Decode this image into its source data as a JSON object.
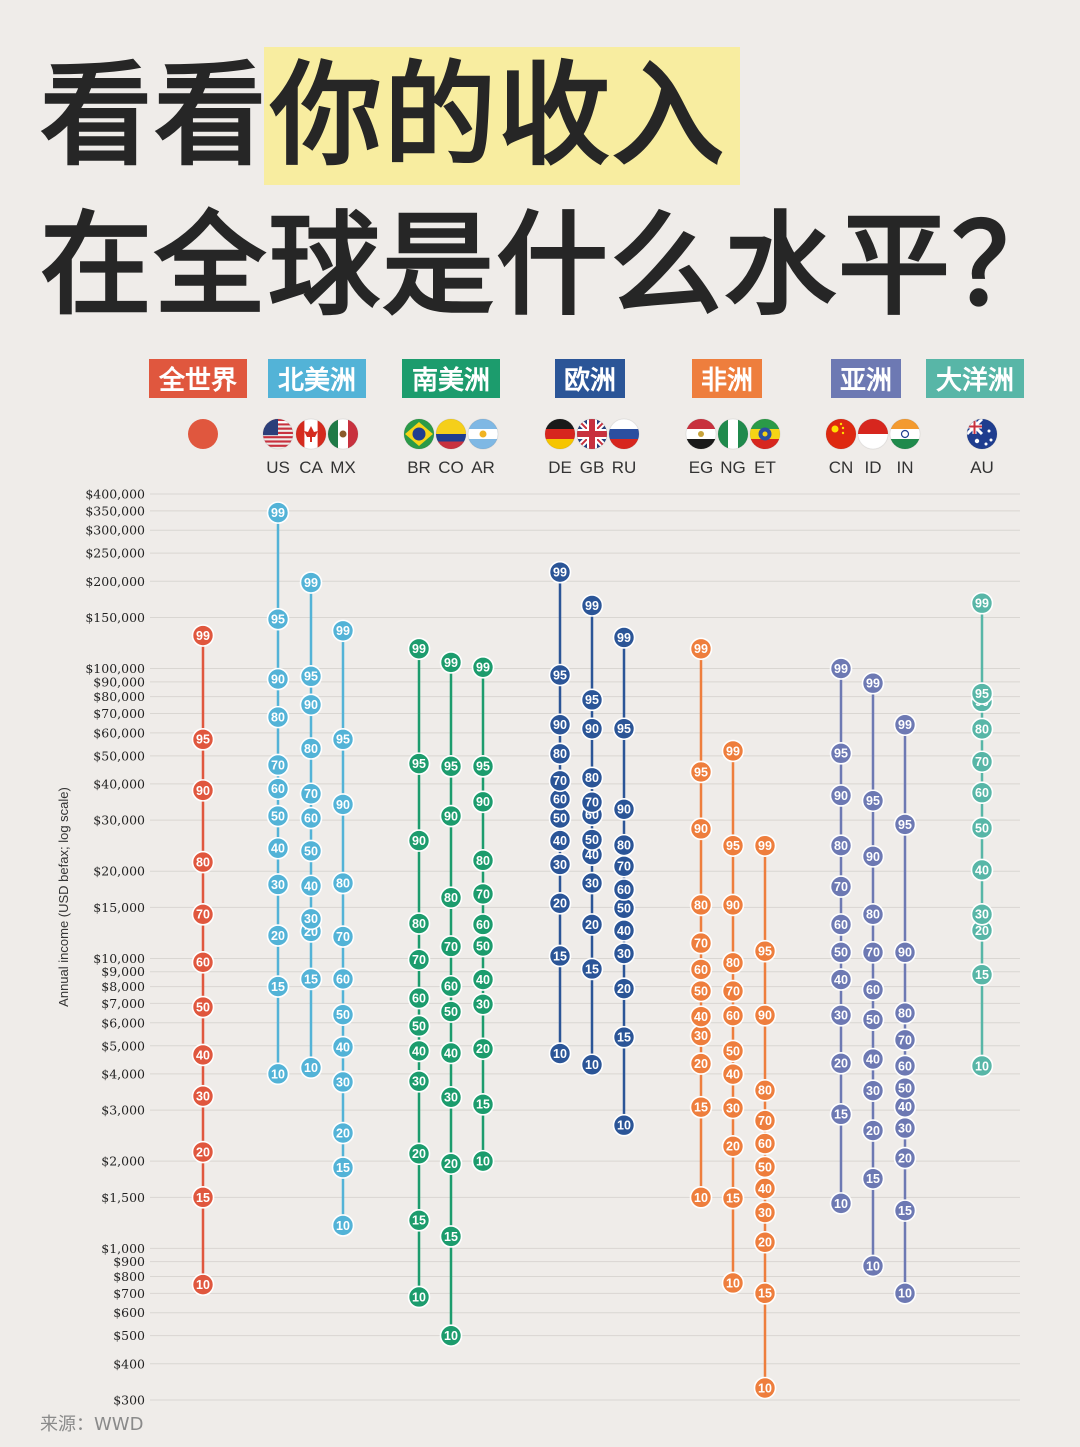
{
  "title": {
    "line1_plain": "看看",
    "line1_highlight": "你的收入",
    "line2": "在全球是什么水平？"
  },
  "source": "来源：WWD",
  "colors": {
    "world": "#e0573e",
    "north_america": "#53b3d7",
    "south_america": "#1c9c6d",
    "europe": "#2b5597",
    "africa": "#ee7e3d",
    "asia": "#6d79b3",
    "oceania": "#58b6a7"
  },
  "chart_data": {
    "type": "scatter",
    "ylabel": "Annual income (USD befax; log scale)",
    "yscale": "log",
    "ylim": [
      300,
      400000
    ],
    "grid": true,
    "yticks": [
      {
        "value": 300,
        "label": "$300"
      },
      {
        "value": 400,
        "label": "$400"
      },
      {
        "value": 500,
        "label": "$500"
      },
      {
        "value": 600,
        "label": "$600"
      },
      {
        "value": 700,
        "label": "$700"
      },
      {
        "value": 800,
        "label": "$800"
      },
      {
        "value": 900,
        "label": "$900"
      },
      {
        "value": 1000,
        "label": "$1,000"
      },
      {
        "value": 1500,
        "label": "$1,500"
      },
      {
        "value": 2000,
        "label": "$2,000"
      },
      {
        "value": 3000,
        "label": "$3,000"
      },
      {
        "value": 4000,
        "label": "$4,000"
      },
      {
        "value": 5000,
        "label": "$5,000"
      },
      {
        "value": 6000,
        "label": "$6,000"
      },
      {
        "value": 7000,
        "label": "$7,000"
      },
      {
        "value": 8000,
        "label": "$8,000"
      },
      {
        "value": 9000,
        "label": "$9,000"
      },
      {
        "value": 10000,
        "label": "$10,000"
      },
      {
        "value": 15000,
        "label": "$15,000"
      },
      {
        "value": 20000,
        "label": "$20,000"
      },
      {
        "value": 30000,
        "label": "$30,000"
      },
      {
        "value": 40000,
        "label": "$40,000"
      },
      {
        "value": 50000,
        "label": "$50,000"
      },
      {
        "value": 60000,
        "label": "$60,000"
      },
      {
        "value": 70000,
        "label": "$70,000"
      },
      {
        "value": 80000,
        "label": "$80,000"
      },
      {
        "value": 90000,
        "label": "$90,000"
      },
      {
        "value": 100000,
        "label": "$100,000"
      },
      {
        "value": 150000,
        "label": "$150,000"
      },
      {
        "value": 200000,
        "label": "$200,000"
      },
      {
        "value": 250000,
        "label": "$250,000"
      },
      {
        "value": 300000,
        "label": "$300,000"
      },
      {
        "value": 350000,
        "label": "$350,000"
      },
      {
        "value": 400000,
        "label": "$400,000"
      }
    ],
    "regions": [
      {
        "name": "全世界",
        "color": "#e0573e",
        "countries": [
          {
            "code": "",
            "flag": "world",
            "percentiles": {
              "10": 750,
              "15": 1500,
              "20": 2150,
              "30": 3350,
              "40": 4650,
              "50": 6800,
              "60": 9700,
              "70": 14200,
              "80": 21500,
              "90": 38000,
              "95": 57000,
              "99": 130000
            }
          }
        ]
      },
      {
        "name": "北美洲",
        "color": "#53b3d7",
        "countries": [
          {
            "code": "US",
            "flag": "us",
            "percentiles": {
              "10": 4000,
              "15": 8000,
              "20": 12000,
              "30": 18000,
              "40": 24000,
              "50": 31000,
              "60": 38500,
              "70": 46500,
              "80": 68000,
              "90": 92000,
              "95": 148000,
              "99": 345000
            }
          },
          {
            "code": "CA",
            "flag": "ca",
            "percentiles": {
              "10": 4200,
              "15": 8500,
              "20": 12400,
              "30": 13700,
              "40": 17800,
              "50": 23500,
              "60": 30500,
              "70": 37000,
              "80": 53000,
              "90": 75000,
              "95": 94000,
              "99": 198000
            }
          },
          {
            "code": "MX",
            "flag": "mx",
            "percentiles": {
              "10": 1200,
              "15": 1900,
              "20": 2500,
              "30": 3750,
              "40": 4950,
              "50": 6400,
              "60": 8500,
              "70": 11900,
              "80": 18200,
              "90": 34000,
              "95": 57000,
              "99": 135000
            }
          }
        ]
      },
      {
        "name": "南美洲",
        "color": "#1c9c6d",
        "countries": [
          {
            "code": "BR",
            "flag": "br",
            "percentiles": {
              "10": 680,
              "15": 1250,
              "20": 2120,
              "30": 3770,
              "40": 4800,
              "50": 5850,
              "60": 7300,
              "70": 9900,
              "80": 13200,
              "90": 25500,
              "95": 47000,
              "99": 117000
            }
          },
          {
            "code": "CO",
            "flag": "co",
            "percentiles": {
              "10": 500,
              "15": 1100,
              "20": 1960,
              "30": 3320,
              "40": 4720,
              "50": 6560,
              "60": 8020,
              "70": 11000,
              "80": 16200,
              "90": 31000,
              "95": 46000,
              "99": 105000
            }
          },
          {
            "code": "AR",
            "flag": "ar",
            "percentiles": {
              "10": 2000,
              "15": 3140,
              "20": 4880,
              "30": 6950,
              "40": 8460,
              "50": 11040,
              "60": 13100,
              "70": 16700,
              "80": 21800,
              "90": 34700,
              "95": 46000,
              "99": 101000
            }
          }
        ]
      },
      {
        "name": "欧洲",
        "color": "#2b5597",
        "countries": [
          {
            "code": "DE",
            "flag": "de",
            "percentiles": {
              "10": 4700,
              "15": 10200,
              "20": 15500,
              "30": 21100,
              "40": 25500,
              "50": 30500,
              "60": 35500,
              "70": 41000,
              "80": 50800,
              "90": 64000,
              "95": 95000,
              "99": 215000
            }
          },
          {
            "code": "GB",
            "flag": "gb",
            "percentiles": {
              "10": 4300,
              "15": 9200,
              "20": 13100,
              "30": 18200,
              "40": 22800,
              "50": 25700,
              "60": 31300,
              "70": 34600,
              "80": 42000,
              "90": 62000,
              "95": 78000,
              "99": 165000
            }
          },
          {
            "code": "RU",
            "flag": "ru",
            "percentiles": {
              "10": 2660,
              "15": 5350,
              "20": 7870,
              "30": 10400,
              "40": 12500,
              "50": 14900,
              "60": 17300,
              "70": 20800,
              "80": 24600,
              "90": 32700,
              "95": 62000,
              "99": 128000
            }
          }
        ]
      },
      {
        "name": "非洲",
        "color": "#ee7e3d",
        "countries": [
          {
            "code": "EG",
            "flag": "eg",
            "percentiles": {
              "10": 1500,
              "15": 3070,
              "20": 4340,
              "30": 5420,
              "40": 6300,
              "50": 7720,
              "60": 9170,
              "70": 11300,
              "80": 15300,
              "90": 28000,
              "95": 44000,
              "99": 117000
            }
          },
          {
            "code": "NG",
            "flag": "ng",
            "percentiles": {
              "10": 760,
              "15": 1490,
              "20": 2250,
              "30": 3050,
              "40": 3990,
              "50": 4800,
              "60": 6350,
              "70": 7720,
              "80": 9660,
              "90": 15300,
              "95": 24500,
              "99": 52000
            }
          },
          {
            "code": "ET",
            "flag": "et",
            "percentiles": {
              "10": 330,
              "15": 700,
              "20": 1050,
              "30": 1330,
              "40": 1610,
              "50": 1910,
              "60": 2300,
              "70": 2760,
              "80": 3510,
              "90": 6370,
              "95": 10600,
              "99": 24500
            }
          }
        ]
      },
      {
        "name": "亚洲",
        "color": "#6d79b3",
        "countries": [
          {
            "code": "CN",
            "flag": "cn",
            "percentiles": {
              "10": 1430,
              "15": 2900,
              "20": 4350,
              "30": 6370,
              "40": 8460,
              "50": 10500,
              "60": 13100,
              "70": 17700,
              "80": 24500,
              "90": 36500,
              "95": 51000,
              "99": 100000
            }
          },
          {
            "code": "ID",
            "flag": "id",
            "percentiles": {
              "10": 870,
              "15": 1740,
              "20": 2550,
              "30": 3500,
              "40": 4500,
              "50": 6150,
              "60": 7800,
              "70": 10500,
              "80": 14200,
              "90": 22500,
              "95": 35000,
              "99": 89000
            }
          },
          {
            "code": "IN",
            "flag": "in",
            "percentiles": {
              "10": 700,
              "15": 1350,
              "20": 2050,
              "30": 2600,
              "40": 3080,
              "50": 3570,
              "60": 4260,
              "70": 5240,
              "80": 6480,
              "90": 10500,
              "95": 29000,
              "99": 64000
            }
          }
        ]
      },
      {
        "name": "大洋洲",
        "color": "#58b6a7",
        "countries": [
          {
            "code": "AU",
            "flag": "au",
            "percentiles": {
              "10": 4260,
              "15": 8790,
              "20": 12500,
              "30": 14200,
              "40": 20200,
              "50": 28200,
              "60": 37300,
              "70": 47700,
              "80": 61900,
              "90": 77000,
              "95": 82000,
              "99": 168000
            }
          }
        ]
      }
    ]
  }
}
